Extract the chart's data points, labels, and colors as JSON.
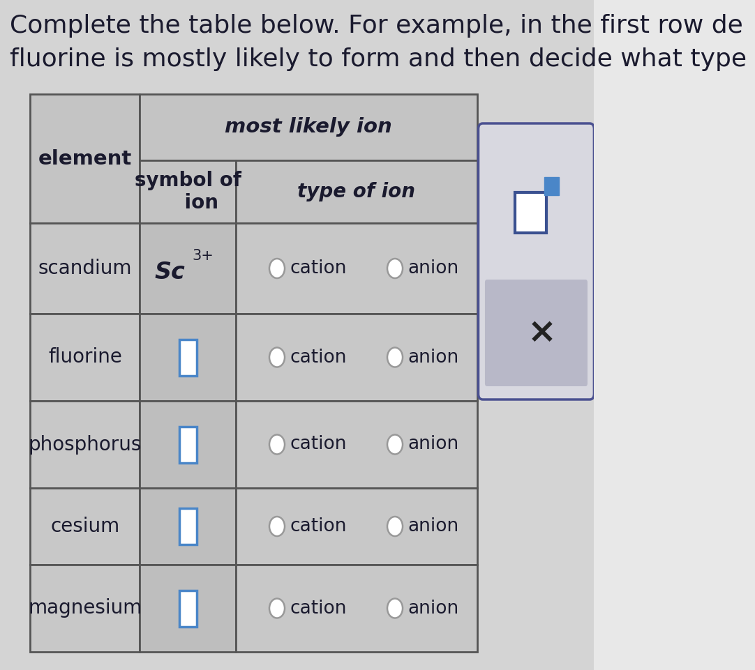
{
  "title_line1": "Complete the table below. For example, in the first row de",
  "title_line2": "fluorine is mostly likely to form and then decide what type",
  "bg_color_top": "#e8e8e8",
  "bg_color_main": "#b8b8b8",
  "table_border_color": "#666666",
  "header_col1": "element",
  "header_col2_top": "most likely ion",
  "header_col2_sub": "symbol of\n    ion",
  "header_col3": "type of ion",
  "rows": [
    {
      "element": "scandium",
      "has_symbol_text": true
    },
    {
      "element": "fluorine",
      "has_symbol_text": false
    },
    {
      "element": "phosphorus",
      "has_symbol_text": false
    },
    {
      "element": "cesium",
      "has_symbol_text": false
    },
    {
      "element": "magnesium",
      "has_symbol_text": false
    }
  ],
  "text_color": "#1a1a2e",
  "title_fontsize": 26,
  "cell_fontsize": 20,
  "header_fontsize": 21,
  "input_box_color": "#4a86c8",
  "radio_color": "#999999",
  "ui_bg": "#d0d0d8",
  "ui_border": "#4a5080",
  "ui_box_color": "#4a86c8"
}
